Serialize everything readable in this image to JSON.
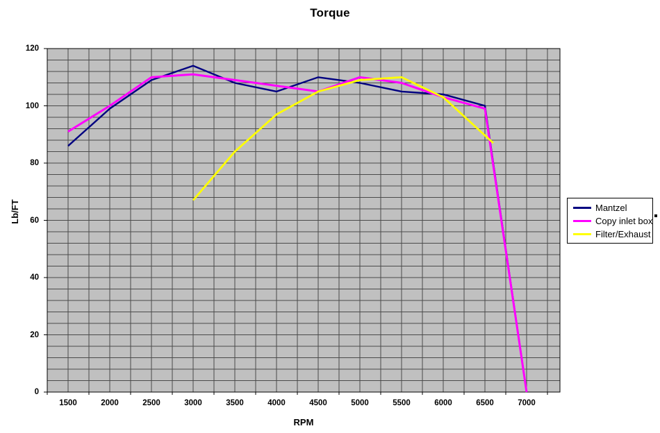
{
  "title": "Torque",
  "y_axis": {
    "title": "Lb/FT",
    "ticks": [
      0,
      20,
      40,
      60,
      80,
      100,
      120
    ]
  },
  "x_axis": {
    "title": "RPM",
    "tick_labels": [
      1500,
      2000,
      2500,
      3000,
      3500,
      4000,
      4500,
      5000,
      5500,
      6000,
      6500,
      7000
    ]
  },
  "legend": {
    "items": [
      {
        "label": "Mantzel",
        "color": "#000080"
      },
      {
        "label": "Copy inlet box",
        "color": "#FF00FF"
      },
      {
        "label": "Filter/Exhaust",
        "color": "#FFFF00"
      }
    ]
  },
  "colors": {
    "page_bg": "#FFFFFF",
    "plot_bg": "#C0C0C0",
    "grid": "#4A4A4A",
    "axis": "#000000",
    "legend_border": "#000000"
  },
  "chart_data": {
    "type": "line",
    "title": "Torque",
    "xlabel": "RPM",
    "ylabel": "Lb/FT",
    "x_range": [
      1250,
      7250
    ],
    "ylim": [
      0,
      120
    ],
    "x_major": 500,
    "x_minor": 250,
    "y_major": 20,
    "y_minor": 4,
    "grid": "on",
    "legend_position": "right",
    "series": [
      {
        "name": "Mantzel",
        "color": "#000080",
        "x": [
          1500,
          2000,
          2500,
          3000,
          3500,
          4000,
          4500,
          5000,
          5500,
          6000,
          6500,
          7000
        ],
        "values": [
          86,
          99,
          109,
          114,
          108,
          105,
          110,
          108,
          105,
          104,
          100,
          0
        ]
      },
      {
        "name": "Copy inlet box",
        "color": "#FF00FF",
        "x": [
          1500,
          2000,
          2500,
          3000,
          3500,
          4000,
          4500,
          5000,
          5500,
          6000,
          6500,
          7000
        ],
        "values": [
          91,
          100,
          110,
          111,
          109,
          107,
          105,
          110,
          108,
          103,
          99,
          0
        ]
      },
      {
        "name": "Filter/Exhaust",
        "color": "#FFFF00",
        "x": [
          3000,
          3500,
          4000,
          4500,
          5000,
          5500,
          6000,
          6600
        ],
        "values": [
          67,
          84,
          97,
          105,
          109,
          110,
          103,
          87
        ]
      }
    ]
  }
}
